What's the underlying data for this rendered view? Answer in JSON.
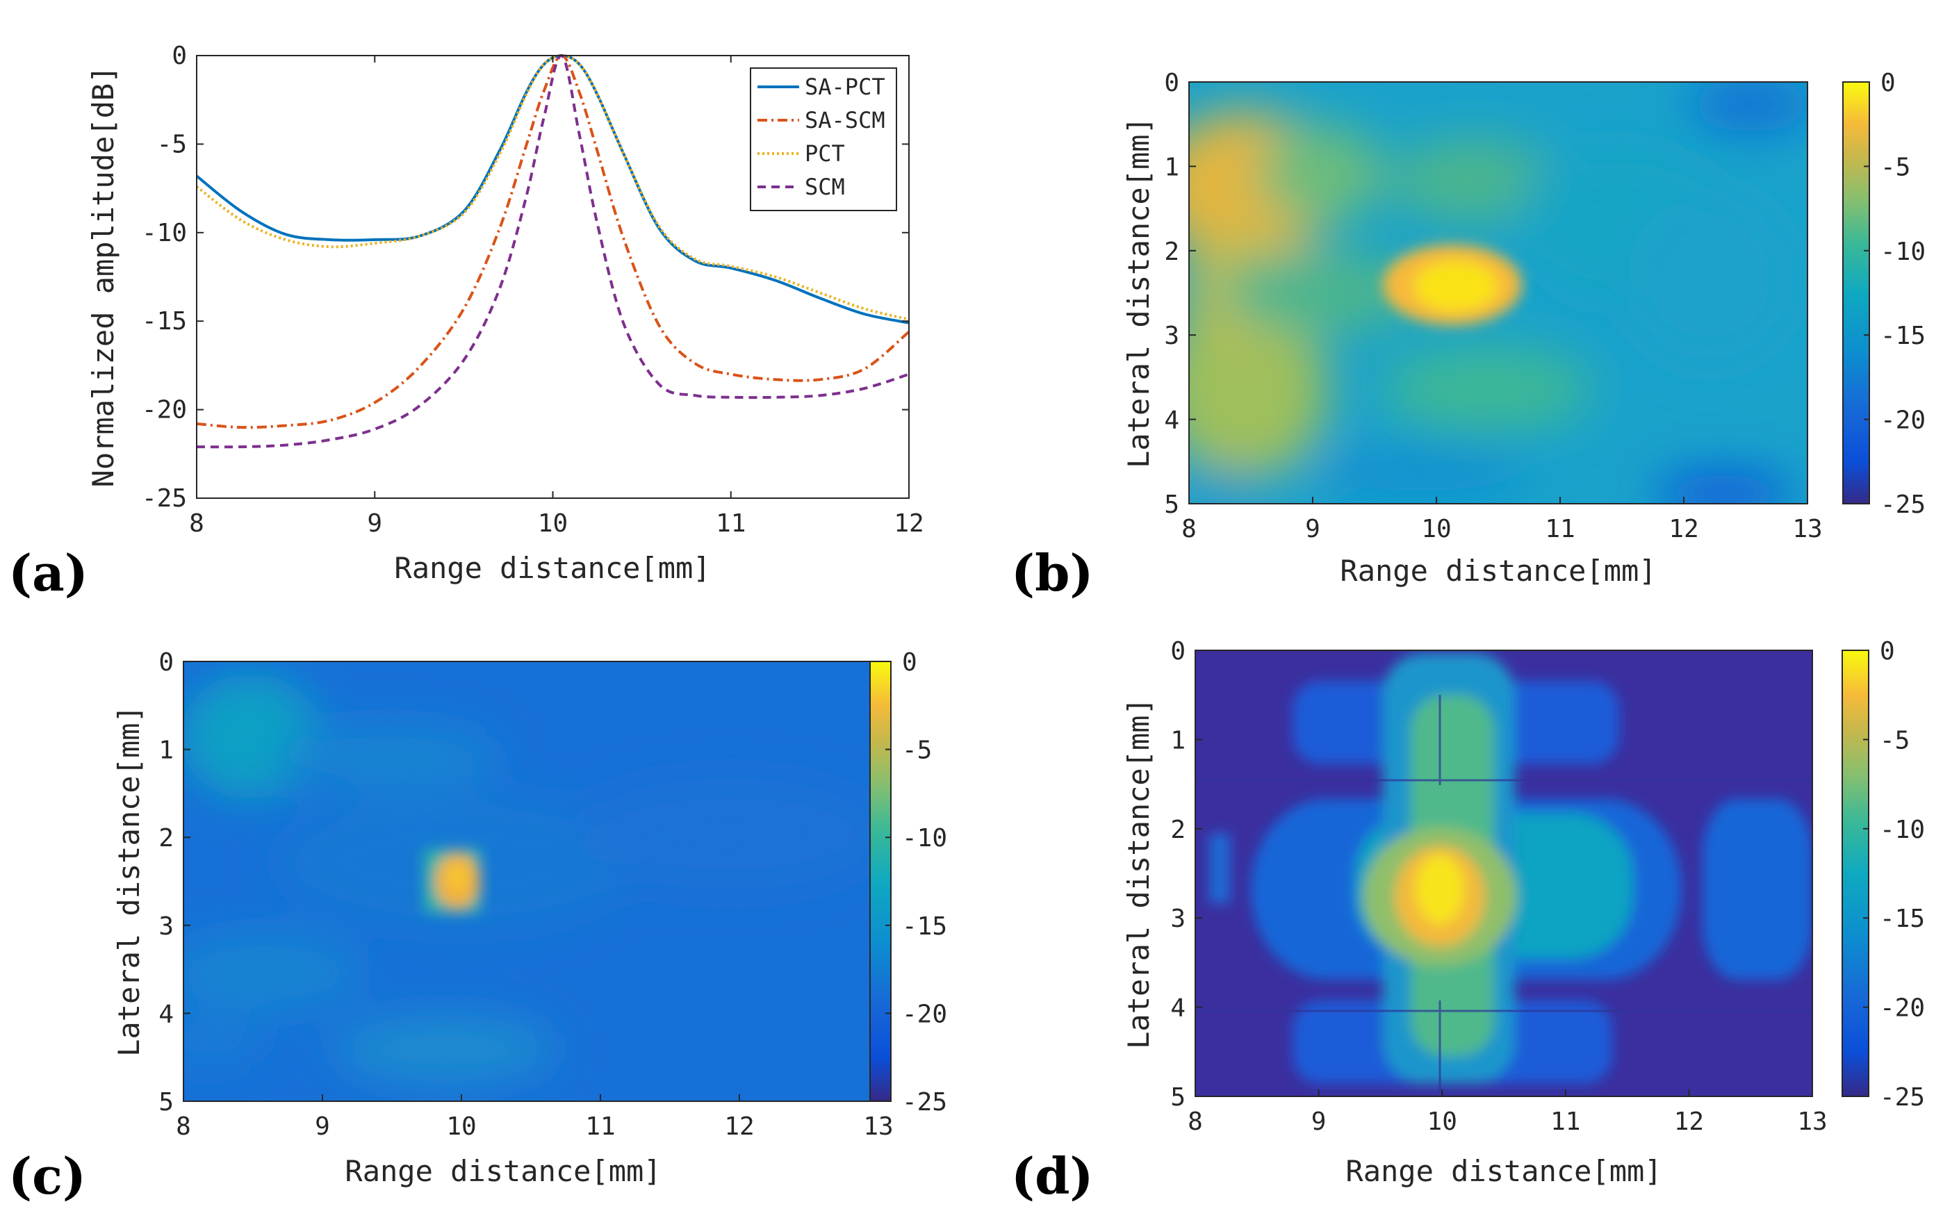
{
  "panel_labels": [
    "(a)",
    "(b)",
    "(c)",
    "(d)"
  ],
  "colors": {
    "sa_pct": "#0072bd",
    "sa_scm": "#d95319",
    "pct": "#edb120",
    "scm": "#7e2f8e",
    "axes": "#262626",
    "frame": "#a6a6a6"
  },
  "chart_data": [
    {
      "id": "a",
      "type": "line",
      "title": "",
      "xlabel": "Range distance[mm]",
      "ylabel": "Normalized amplitude[dB]",
      "xlim": [
        8,
        12
      ],
      "ylim": [
        -25,
        0
      ],
      "xticks": [
        "8",
        "9",
        "10",
        "11",
        "12"
      ],
      "yticks": [
        "0",
        "-5",
        "-10",
        "-15",
        "-20",
        "-25"
      ],
      "legend_position": "top-right",
      "x": [
        8.0,
        8.25,
        8.5,
        8.75,
        9.0,
        9.25,
        9.5,
        9.7,
        9.85,
        9.95,
        10.05,
        10.15,
        10.25,
        10.4,
        10.6,
        10.8,
        11.0,
        11.25,
        11.5,
        11.75,
        12.0
      ],
      "series": [
        {
          "name": "SA-PCT",
          "style": "solid",
          "values": [
            -6.8,
            -8.8,
            -10.1,
            -10.4,
            -10.4,
            -10.2,
            -8.8,
            -5.4,
            -2.1,
            -0.5,
            0.0,
            -0.5,
            -2.2,
            -5.6,
            -9.8,
            -11.6,
            -12.0,
            -12.7,
            -13.7,
            -14.6,
            -15.1
          ]
        },
        {
          "name": "SA-SCM",
          "style": "dashdot",
          "values": [
            -20.8,
            -21.0,
            -20.9,
            -20.6,
            -19.6,
            -17.6,
            -14.3,
            -9.8,
            -5.1,
            -2.0,
            0.0,
            -2.1,
            -5.4,
            -10.4,
            -15.3,
            -17.4,
            -18.0,
            -18.3,
            -18.3,
            -17.7,
            -15.6
          ]
        },
        {
          "name": "PCT",
          "style": "dotted",
          "values": [
            -7.4,
            -9.3,
            -10.4,
            -10.8,
            -10.6,
            -10.2,
            -8.9,
            -5.6,
            -2.2,
            -0.5,
            0.0,
            -0.5,
            -2.2,
            -5.6,
            -9.7,
            -11.5,
            -11.9,
            -12.5,
            -13.4,
            -14.3,
            -14.9
          ]
        },
        {
          "name": "SCM",
          "style": "dashed",
          "values": [
            -22.1,
            -22.1,
            -22.0,
            -21.7,
            -21.1,
            -19.8,
            -17.2,
            -13.2,
            -8.0,
            -3.5,
            0.0,
            -4.5,
            -9.5,
            -15.2,
            -18.6,
            -19.2,
            -19.3,
            -19.3,
            -19.2,
            -18.8,
            -18.0
          ]
        }
      ]
    },
    {
      "id": "b",
      "type": "heatmap",
      "xlabel": "Range distance[mm]",
      "ylabel": "Lateral distance[mm]",
      "xlim": [
        8,
        13
      ],
      "ylim": [
        0,
        5
      ],
      "xticks": [
        "8",
        "9",
        "10",
        "11",
        "12",
        "13"
      ],
      "yticks": [
        "0",
        "1",
        "2",
        "3",
        "4",
        "5"
      ],
      "colorbar": {
        "range": [
          -25,
          0
        ],
        "ticks": [
          "0",
          "-5",
          "-10",
          "-15",
          "-20",
          "-25"
        ]
      },
      "peak": {
        "x": 10.1,
        "y": 2.5,
        "value": 0
      },
      "background_db": -15
    },
    {
      "id": "c",
      "type": "heatmap",
      "xlabel": "Range distance[mm]",
      "ylabel": "Lateral distance[mm]",
      "xlim": [
        8,
        13
      ],
      "ylim": [
        0,
        5
      ],
      "xticks": [
        "8",
        "9",
        "10",
        "11",
        "12",
        "13"
      ],
      "yticks": [
        "0",
        "1",
        "2",
        "3",
        "4",
        "5"
      ],
      "colorbar": {
        "range": [
          -25,
          0
        ],
        "ticks": [
          "0",
          "-5",
          "-10",
          "-15",
          "-20",
          "-25"
        ]
      },
      "peak": {
        "x": 10.1,
        "y": 2.5,
        "value": -2
      },
      "background_db": -19
    },
    {
      "id": "d",
      "type": "heatmap",
      "xlabel": "Range distance[mm]",
      "ylabel": "Lateral distance[mm]",
      "xlim": [
        8,
        13
      ],
      "ylim": [
        0,
        5
      ],
      "xticks": [
        "8",
        "9",
        "10",
        "11",
        "12",
        "13"
      ],
      "yticks": [
        "0",
        "1",
        "2",
        "3",
        "4",
        "5"
      ],
      "colorbar": {
        "range": [
          -25,
          0
        ],
        "ticks": [
          "0",
          "-5",
          "-10",
          "-15",
          "-20",
          "-25"
        ]
      },
      "peak": {
        "x": 10.05,
        "y": 2.5,
        "value": 0
      },
      "background_db": -24
    }
  ]
}
